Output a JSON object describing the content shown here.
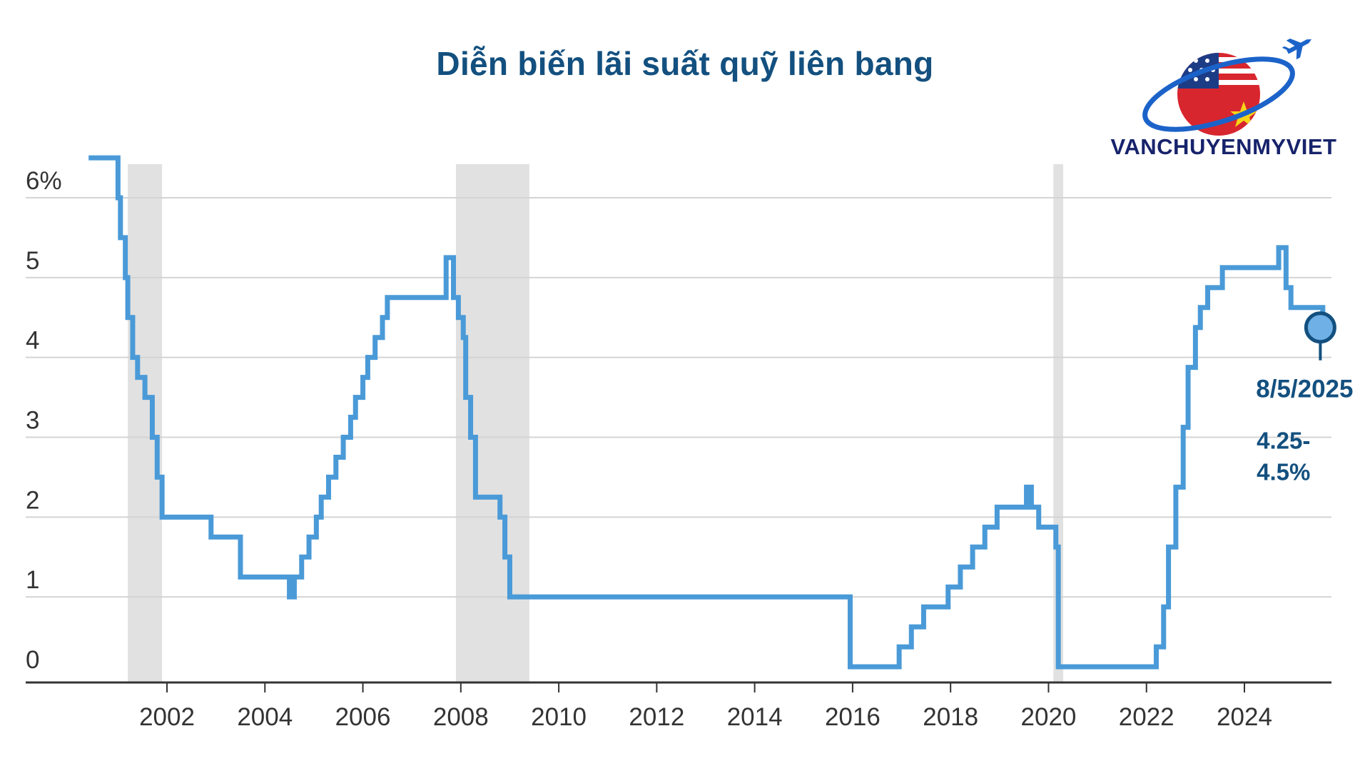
{
  "brand": {
    "name": "VANCHUYENMYVIET",
    "logo_icon": "globe-airplane-us-vietnam-flag-icon"
  },
  "chart_data": {
    "type": "line",
    "title": "Diễn biến lãi suất quỹ liên bang",
    "xlabel": "",
    "ylabel": "",
    "ylim": [
      0,
      6.5
    ],
    "xlim": [
      2000.2,
      2026.0
    ],
    "grid": true,
    "y_ticks": [
      {
        "value": 0,
        "label": "0"
      },
      {
        "value": 1,
        "label": "1"
      },
      {
        "value": 2,
        "label": "2"
      },
      {
        "value": 3,
        "label": "3"
      },
      {
        "value": 4,
        "label": "4"
      },
      {
        "value": 5,
        "label": "5"
      },
      {
        "value": 6,
        "label": "6%"
      }
    ],
    "x_ticks": [
      2002,
      2004,
      2006,
      2008,
      2010,
      2012,
      2014,
      2016,
      2018,
      2020,
      2022,
      2024
    ],
    "recessions": [
      [
        2001.2,
        2001.9
      ],
      [
        2007.9,
        2009.4
      ],
      [
        2020.1,
        2020.3
      ]
    ],
    "series": [
      {
        "color": "#4a9ad8",
        "x": [
          2000.4,
          2000.9,
          2001.0,
          2001.05,
          2001.15,
          2001.2,
          2001.3,
          2001.4,
          2001.55,
          2001.7,
          2001.8,
          2001.9,
          2002.9,
          2003.5,
          2004.5,
          2004.6,
          2004.75,
          2004.9,
          2005.05,
          2005.15,
          2005.3,
          2005.45,
          2005.6,
          2005.75,
          2005.85,
          2006.0,
          2006.1,
          2006.25,
          2006.4,
          2006.5,
          2007.7,
          2007.85,
          2007.95,
          2008.05,
          2008.1,
          2008.2,
          2008.3,
          2008.8,
          2008.9,
          2009.0,
          2015.95,
          2016.95,
          2017.2,
          2017.45,
          2017.95,
          2018.2,
          2018.45,
          2018.7,
          2018.95,
          2019.55,
          2019.65,
          2019.8,
          2020.15,
          2020.2,
          2022.2,
          2022.35,
          2022.45,
          2022.6,
          2022.75,
          2022.85,
          2023.0,
          2023.1,
          2023.25,
          2023.55,
          2024.7,
          2024.85,
          2024.95,
          2025.6
        ],
        "y": [
          6.5,
          6.5,
          6.0,
          5.5,
          5.0,
          4.5,
          4.0,
          3.75,
          3.5,
          3.0,
          2.5,
          2.0,
          1.75,
          1.25,
          1.0,
          1.25,
          1.5,
          1.75,
          2.0,
          2.25,
          2.5,
          2.75,
          3.0,
          3.25,
          3.5,
          3.75,
          4.0,
          4.25,
          4.5,
          4.75,
          5.25,
          4.75,
          4.5,
          4.25,
          3.5,
          3.0,
          2.25,
          2.0,
          1.5,
          1.0,
          0.125,
          0.375,
          0.625,
          0.875,
          1.125,
          1.375,
          1.625,
          1.875,
          2.125,
          2.375,
          2.125,
          1.875,
          1.625,
          0.125,
          0.375,
          0.875,
          1.625,
          2.375,
          3.125,
          3.875,
          4.375,
          4.625,
          4.875,
          5.125,
          5.375,
          4.875,
          4.625,
          4.375
        ]
      }
    ],
    "annotation": {
      "date": "8/5/2025",
      "value_line1": "4.25-",
      "value_line2": "4.5%",
      "x": 2025.55,
      "y": 4.375
    }
  }
}
